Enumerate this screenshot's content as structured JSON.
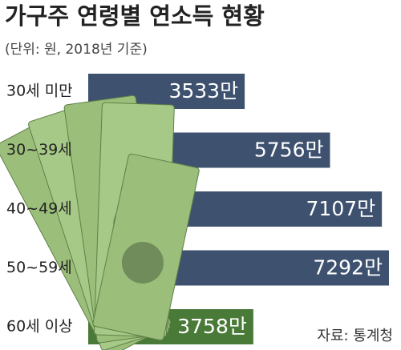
{
  "chart_data": {
    "type": "bar",
    "orientation": "horizontal",
    "title": "가구주 연령별 연소득 현황",
    "subtitle": "(단위: 원, 2018년 기준)",
    "source": "자료: 통계청",
    "categories": [
      "30세 미만",
      "30~39세",
      "40~49세",
      "50~59세",
      "60세 이상"
    ],
    "values": [
      3533,
      5756,
      7107,
      7292,
      3758
    ],
    "value_labels": [
      "3533만",
      "5756만",
      "7107만",
      "7292만",
      "3758만"
    ],
    "colors": [
      "#3e5270",
      "#3e5270",
      "#3e5270",
      "#3e5270",
      "#4a7a37"
    ]
  }
}
